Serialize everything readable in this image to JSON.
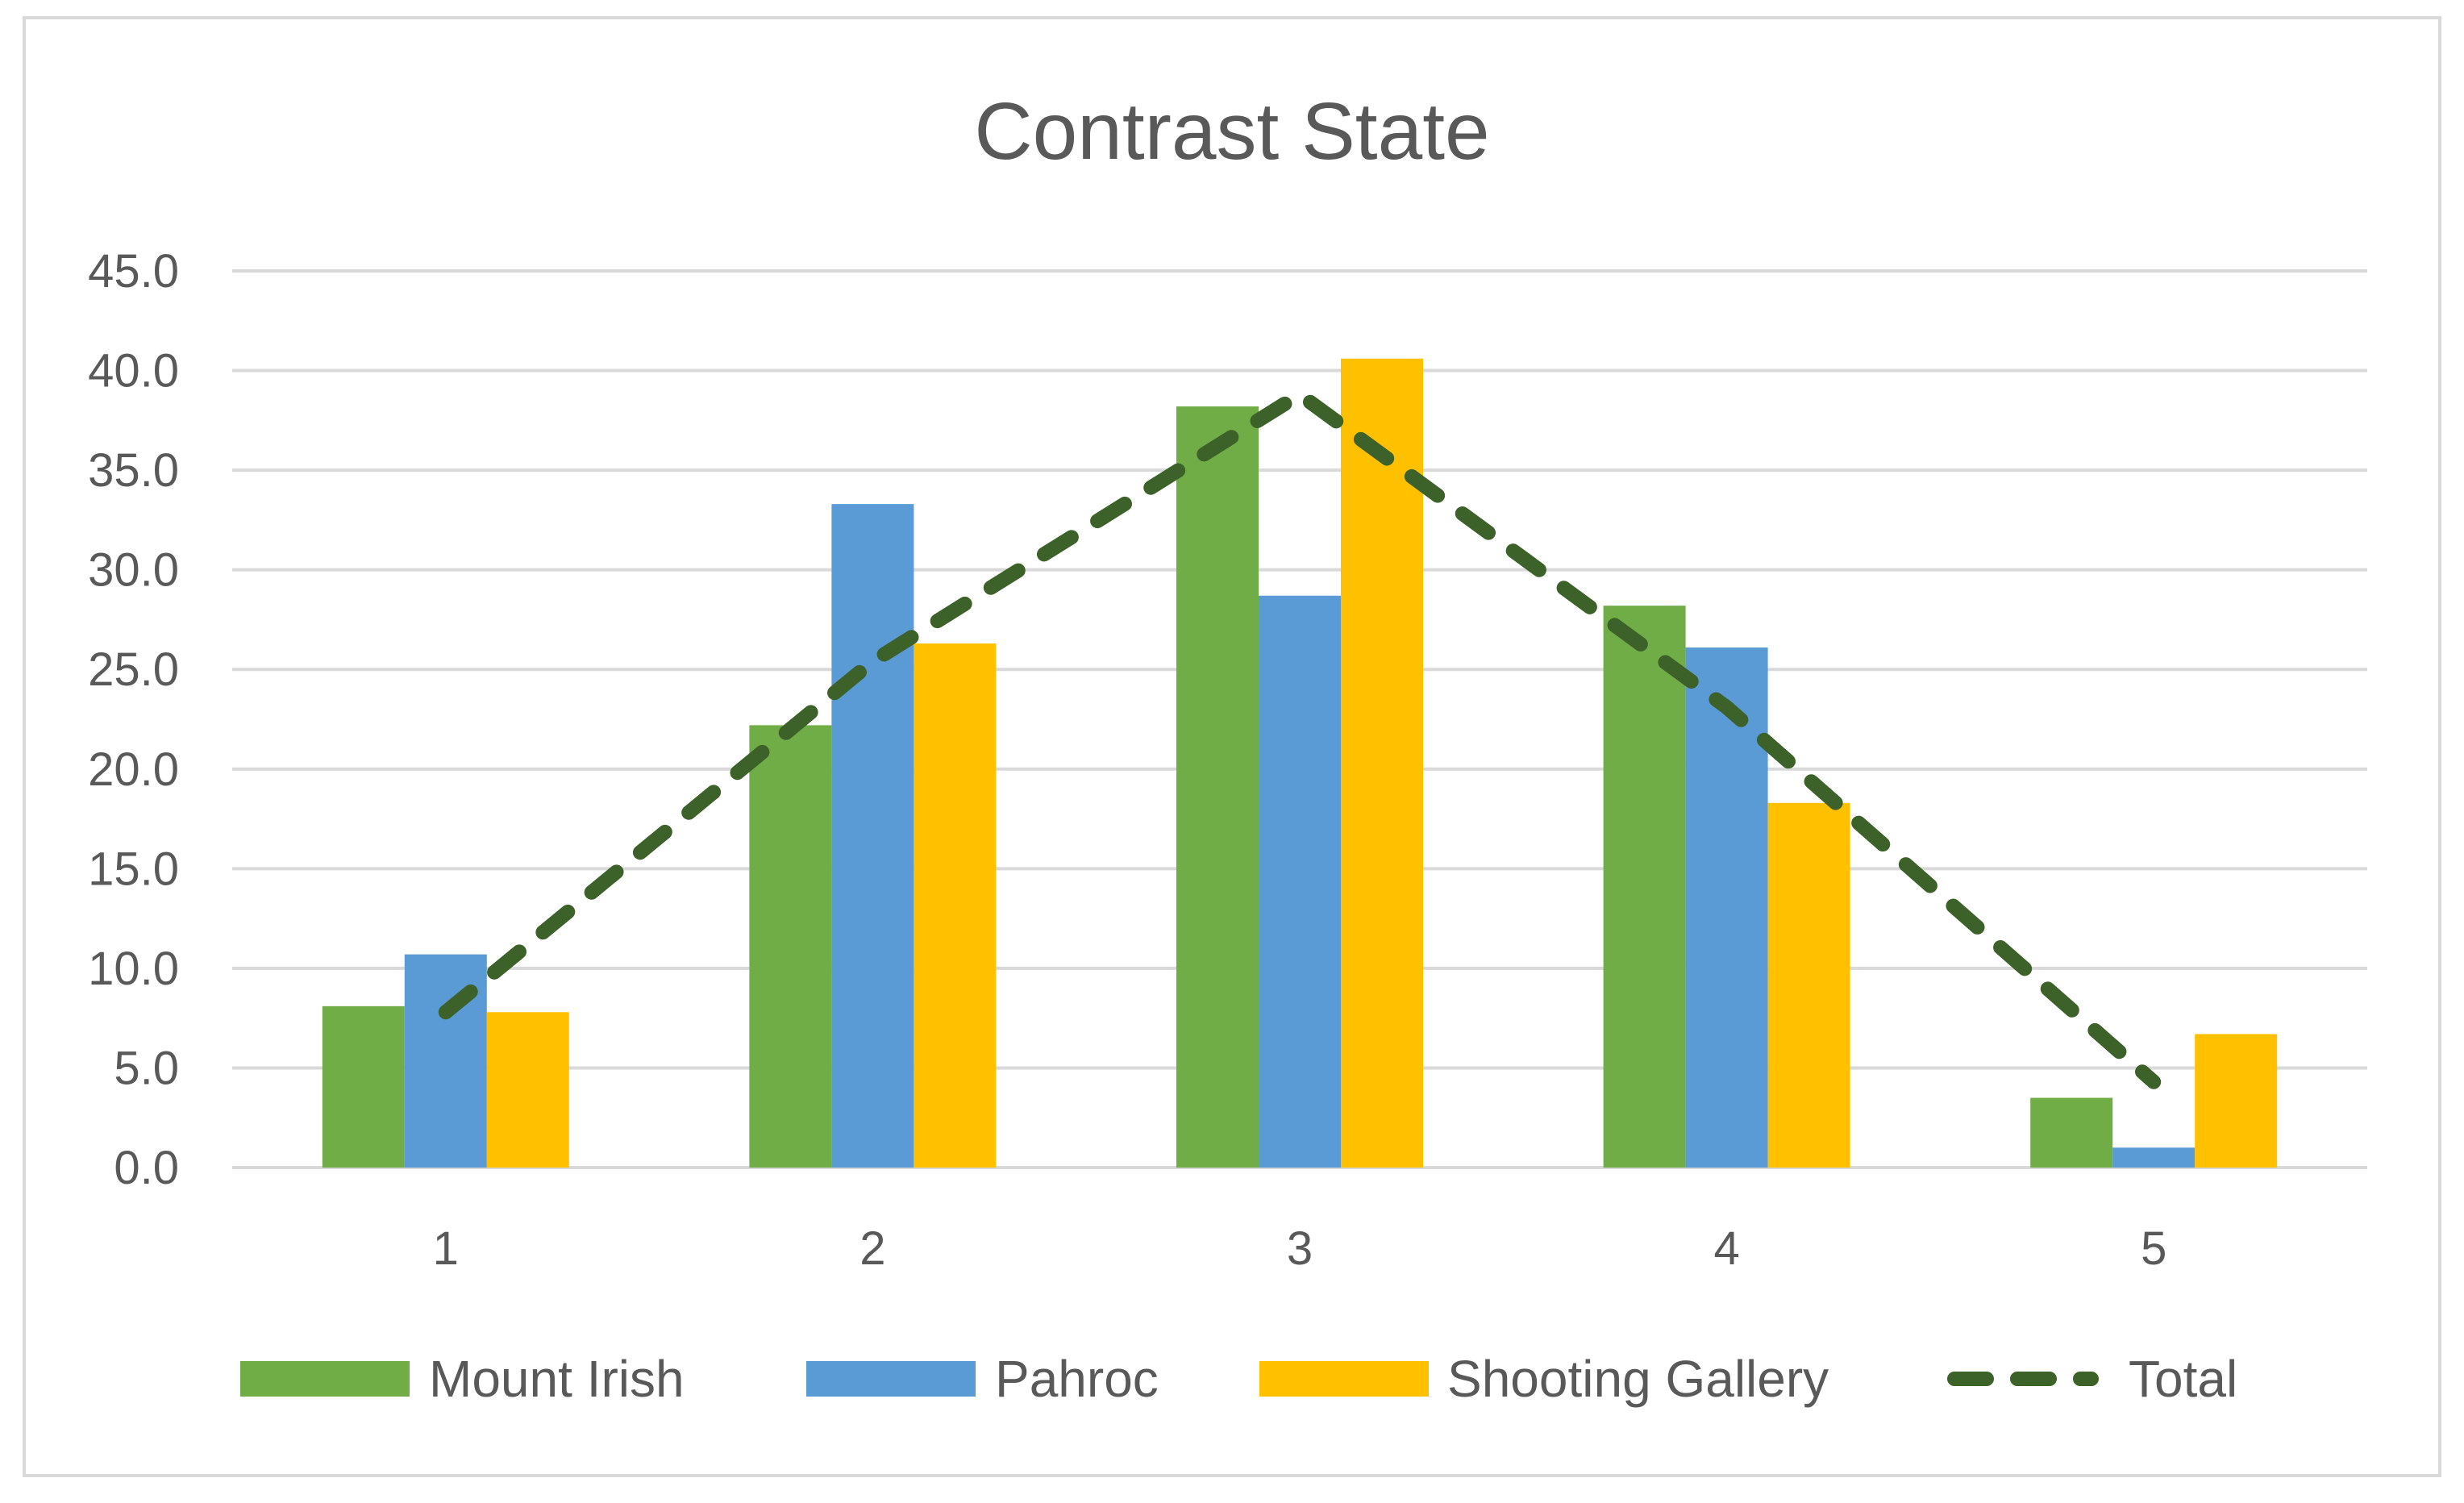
{
  "chart_data": {
    "type": "bar",
    "title": "Contrast State",
    "xlabel": "",
    "ylabel": "",
    "categories": [
      "1",
      "2",
      "3",
      "4",
      "5"
    ],
    "ylim": [
      0,
      45
    ],
    "yticks": [
      "0.0",
      "5.0",
      "10.0",
      "15.0",
      "20.0",
      "25.0",
      "30.0",
      "35.0",
      "40.0",
      "45.0"
    ],
    "grid": true,
    "legend_position": "bottom",
    "series": [
      {
        "name": "Mount Irish",
        "kind": "bar",
        "color": "#70ad47",
        "values": [
          8.1,
          22.2,
          38.2,
          28.2,
          3.5
        ]
      },
      {
        "name": "Pahroc",
        "kind": "bar",
        "color": "#5b9bd5",
        "values": [
          10.7,
          33.3,
          28.7,
          26.1,
          1.0
        ]
      },
      {
        "name": "Shooting Gallery",
        "kind": "bar",
        "color": "#ffc000",
        "values": [
          7.8,
          26.3,
          40.6,
          18.3,
          6.7
        ]
      },
      {
        "name": "Total",
        "kind": "line",
        "style": "dashed",
        "color": "#3c6129",
        "values": [
          7.8,
          25.4,
          38.8,
          23.1,
          4.3
        ]
      }
    ]
  }
}
